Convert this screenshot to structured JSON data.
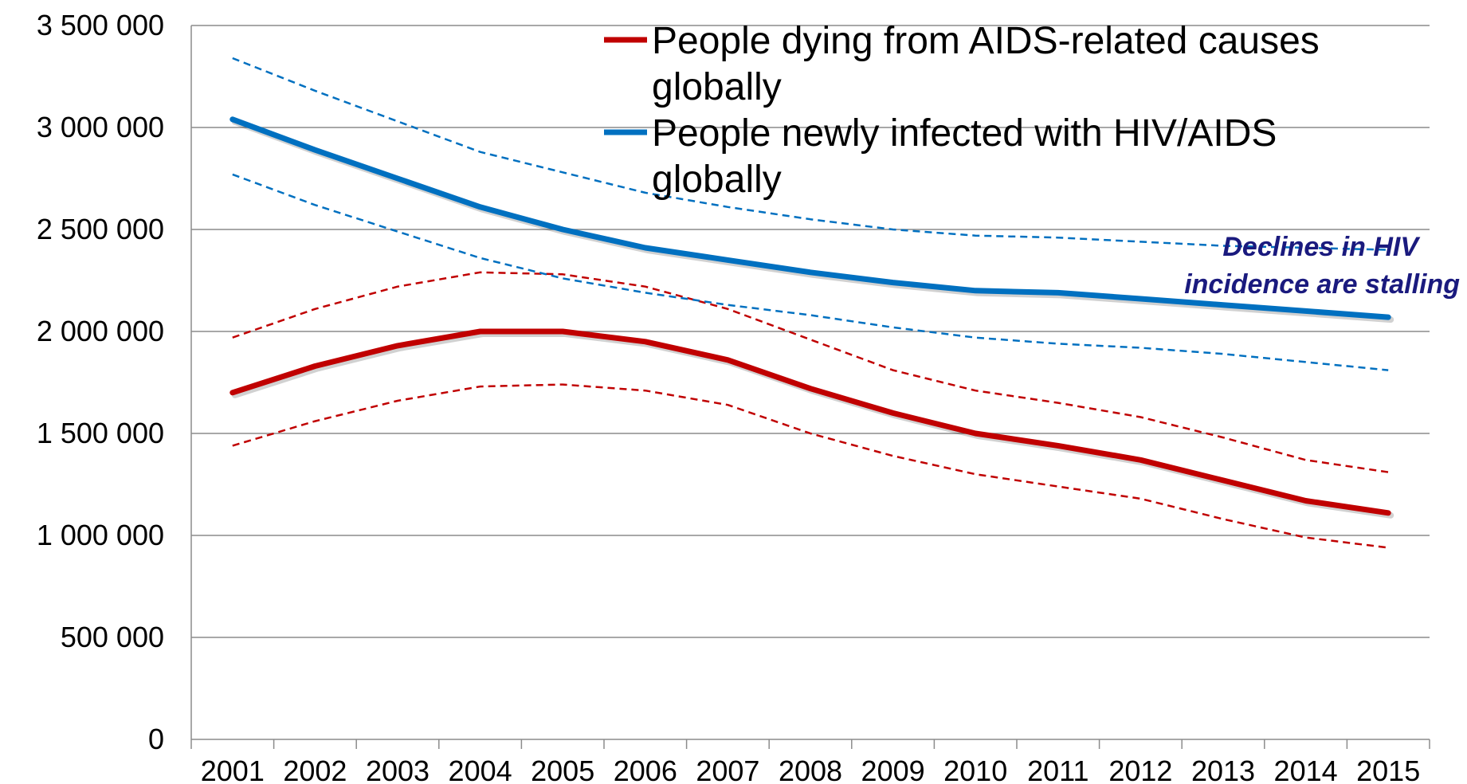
{
  "chart_data": {
    "type": "line",
    "categories": [
      "2001",
      "2002",
      "2003",
      "2004",
      "2005",
      "2006",
      "2007",
      "2008",
      "2009",
      "2010",
      "2011",
      "2012",
      "2013",
      "2014",
      "2015"
    ],
    "ylim": [
      0,
      3500000
    ],
    "y_ticks": [
      0,
      500000,
      1000000,
      1500000,
      2000000,
      2500000,
      3000000,
      3500000
    ],
    "y_tick_labels": [
      "0",
      "500 000",
      "1 000 000",
      "1 500 000",
      "2 000 000",
      "2 500 000",
      "3 000 000",
      "3 500 000"
    ],
    "grid": "horizontal",
    "legend_position": "top-right",
    "series": [
      {
        "name": "People dying from AIDS-related causes globally",
        "color": "#c00000",
        "style": "solid",
        "values": [
          1700000,
          1830000,
          1930000,
          2000000,
          2000000,
          1950000,
          1860000,
          1720000,
          1600000,
          1500000,
          1440000,
          1370000,
          1270000,
          1170000,
          1110000
        ]
      },
      {
        "name": "People newly infected with HIV/AIDS globally",
        "color": "#0070c0",
        "style": "solid",
        "values": [
          3040000,
          2890000,
          2750000,
          2610000,
          2500000,
          2410000,
          2350000,
          2290000,
          2240000,
          2200000,
          2190000,
          2160000,
          2130000,
          2100000,
          2070000
        ]
      },
      {
        "color": "#c00000",
        "style": "dashed",
        "values": [
          1970000,
          2110000,
          2220000,
          2290000,
          2280000,
          2220000,
          2110000,
          1960000,
          1810000,
          1710000,
          1650000,
          1580000,
          1480000,
          1370000,
          1310000
        ]
      },
      {
        "color": "#c00000",
        "style": "dashed",
        "values": [
          1440000,
          1560000,
          1660000,
          1730000,
          1740000,
          1710000,
          1640000,
          1500000,
          1390000,
          1300000,
          1240000,
          1180000,
          1080000,
          990000,
          940000
        ]
      },
      {
        "color": "#0070c0",
        "style": "dashed",
        "values": [
          3340000,
          3180000,
          3030000,
          2880000,
          2780000,
          2680000,
          2610000,
          2550000,
          2500000,
          2470000,
          2460000,
          2440000,
          2420000,
          2410000,
          2400000
        ]
      },
      {
        "color": "#0070c0",
        "style": "dashed",
        "values": [
          2770000,
          2620000,
          2490000,
          2360000,
          2260000,
          2190000,
          2130000,
          2080000,
          2020000,
          1970000,
          1940000,
          1920000,
          1890000,
          1850000,
          1810000
        ]
      }
    ],
    "legend": [
      {
        "lines": [
          "People dying from AIDS-related causes",
          "globally"
        ],
        "color": "#c00000"
      },
      {
        "lines": [
          "People newly infected with HIV/AIDS",
          "globally"
        ],
        "color": "#0070c0"
      }
    ],
    "annotation": {
      "lines": [
        "Declines in HIV",
        "incidence are stalling"
      ],
      "color": "#1a1a7e"
    }
  }
}
